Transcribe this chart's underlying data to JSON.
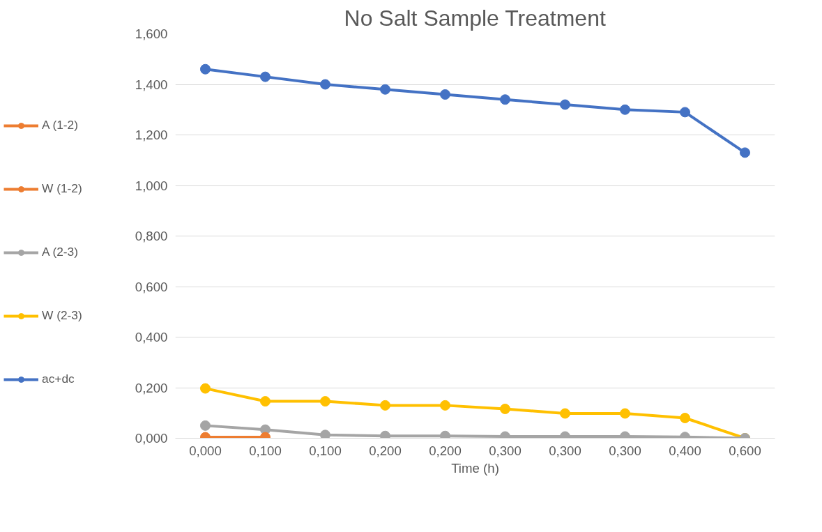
{
  "chart_data": {
    "type": "line",
    "title": "No Salt Sample Treatment",
    "xlabel": "Time (h)",
    "categories": [
      "0,000",
      "0,100",
      "0,100",
      "0,200",
      "0,200",
      "0,300",
      "0,300",
      "0,300",
      "0,400",
      "0,600"
    ],
    "series": [
      {
        "name": "A (1-2)",
        "color": "#ed7d31",
        "values": [
          0.004,
          0.004,
          null,
          null,
          null,
          null,
          null,
          null,
          null,
          null
        ]
      },
      {
        "name": "W (1-2)",
        "color": "#ed7d31",
        "values": [
          null,
          null,
          null,
          null,
          null,
          null,
          null,
          null,
          null,
          null
        ]
      },
      {
        "name": "A (2-3)",
        "color": "#a5a5a5",
        "values": [
          0.05,
          0.034,
          0.013,
          0.009,
          0.009,
          0.007,
          0.007,
          0.007,
          0.005,
          0.0
        ]
      },
      {
        "name": "W (2-3)",
        "color": "#ffc000",
        "values": [
          0.197,
          0.146,
          0.146,
          0.13,
          0.13,
          0.116,
          0.098,
          0.098,
          0.08,
          0.0
        ]
      },
      {
        "name": "ac+dc",
        "color": "#4472c4",
        "values": [
          1.46,
          1.43,
          1.4,
          1.38,
          1.36,
          1.34,
          1.32,
          1.3,
          1.29,
          1.13
        ]
      }
    ],
    "ylim": [
      0,
      1.6
    ],
    "yticks": [
      {
        "value": 0,
        "label": "0,000"
      },
      {
        "value": 0.2,
        "label": "0,200"
      },
      {
        "value": 0.4,
        "label": "0,400"
      },
      {
        "value": 0.6,
        "label": "0,600"
      },
      {
        "value": 0.8,
        "label": "0,800"
      },
      {
        "value": 1.0,
        "label": "1,000"
      },
      {
        "value": 1.2,
        "label": "1,200"
      },
      {
        "value": 1.4,
        "label": "1,400"
      },
      {
        "value": 1.6,
        "label": "1,600"
      }
    ],
    "grid": "y",
    "legend": "left",
    "marker": "circle",
    "line_style": "solid"
  }
}
